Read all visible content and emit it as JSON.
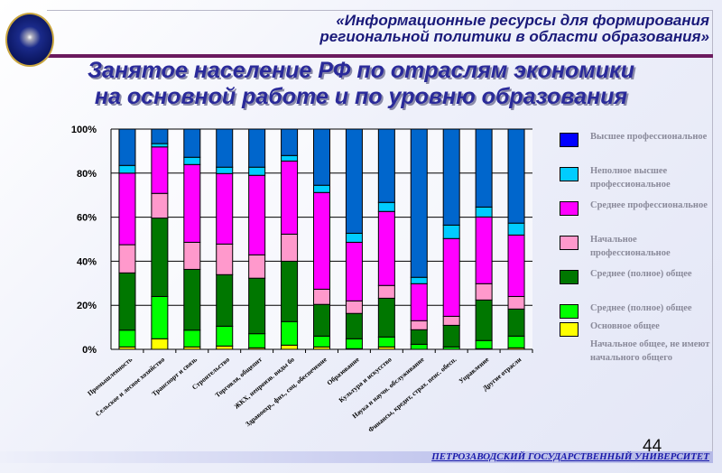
{
  "header": {
    "line1": "«Информационные ресурсы для формирования",
    "line2": "региональной политики в области образования»"
  },
  "title": {
    "line1": "Занятое население  РФ по отраслям экономики",
    "line2": "на основной работе и по уровню образования"
  },
  "footer": {
    "university": "ПЕТРОЗАВОДСКИЙ ГОСУДАРСТВЕННЫЙ УНИВЕРСИТЕТ",
    "page_number": "44"
  },
  "chart_data": {
    "type": "bar",
    "stacked": "100%",
    "title": "",
    "xlabel": "",
    "ylabel": "",
    "ylim": [
      0,
      100
    ],
    "yticks": [
      "0%",
      "20%",
      "40%",
      "60%",
      "80%",
      "100%"
    ],
    "grid": true,
    "legend_position": "right",
    "categories": [
      "Промышленность",
      "Сельское и лесное хозяйство",
      "Транспорт и связь",
      "Строительство",
      "Торговля, общепит",
      "ЖКХ, непроизв. виды бо",
      "Здравоохр., физ., соц. обеспечение",
      "Образование",
      "Культура и искусство",
      "Наука и научн. обслуживание",
      "Финансы, кредит, страх. пенс. обесп.",
      "Управление",
      "Другие отрасли"
    ],
    "series": [
      {
        "name": "Высшее профессиональное",
        "color": "#0066cc",
        "legend_color": "#0000ff",
        "values": [
          16.5,
          6.6,
          12.8,
          17.3,
          17.3,
          12.0,
          25.5,
          47.3,
          33.3,
          67.3,
          43.6,
          35.4,
          42.7
        ]
      },
      {
        "name": "Неполное высшее профессиональное",
        "color": "#00ccff",
        "values": [
          3.5,
          1.5,
          3.3,
          2.9,
          3.7,
          2.5,
          3.3,
          4.1,
          4.1,
          2.9,
          6.1,
          4.5,
          5.4
        ]
      },
      {
        "name": "Среднее профессиональное",
        "color": "#ff00ff",
        "values": [
          32.5,
          21.1,
          35.3,
          32.0,
          36.1,
          33.2,
          43.9,
          26.6,
          33.6,
          16.8,
          35.3,
          30.3,
          27.9
        ]
      },
      {
        "name": "Начальное профессиональное",
        "color": "#ff99cc",
        "values": [
          12.8,
          11.2,
          12.3,
          13.9,
          10.6,
          12.3,
          6.9,
          5.7,
          5.8,
          4.1,
          4.1,
          7.4,
          5.7
        ]
      },
      {
        "name": "Среднее (полное) общее",
        "color": "#007700",
        "values": [
          26.0,
          35.6,
          27.6,
          23.4,
          25.2,
          27.4,
          14.4,
          11.5,
          17.6,
          6.6,
          9.8,
          18.4,
          12.3
        ]
      },
      {
        "name": "Основное общее",
        "color": "#00ff00",
        "values": [
          7.6,
          19.2,
          7.6,
          9.0,
          6.4,
          10.7,
          4.9,
          4.5,
          4.5,
          2.3,
          1.1,
          3.7,
          5.3
        ]
      },
      {
        "name": "Начальное общее, не имеют начального общего",
        "color": "#ffff00",
        "values": [
          1.1,
          4.8,
          1.1,
          1.5,
          0.7,
          1.9,
          1.1,
          0.3,
          1.1,
          0.0,
          0.0,
          0.3,
          0.7
        ]
      }
    ],
    "legend_entries": [
      {
        "label": "Высшее профессиональное",
        "color": "#0000ff"
      },
      {
        "label": "Неполное высшее профессиональное",
        "color": "#00ccff"
      },
      {
        "label": "Среднее профессиональное",
        "color": "#ff00ff"
      },
      {
        "label": "Начальное профессиональное",
        "color": "#ff99cc"
      },
      {
        "label": "Среднее (полное) общее",
        "color": "#007700"
      },
      {
        "label": "Основное общее",
        "color": "#00ff00"
      },
      {
        "label": "Начальное общее, не имеют начального общего",
        "color": "#ffff00"
      }
    ]
  }
}
